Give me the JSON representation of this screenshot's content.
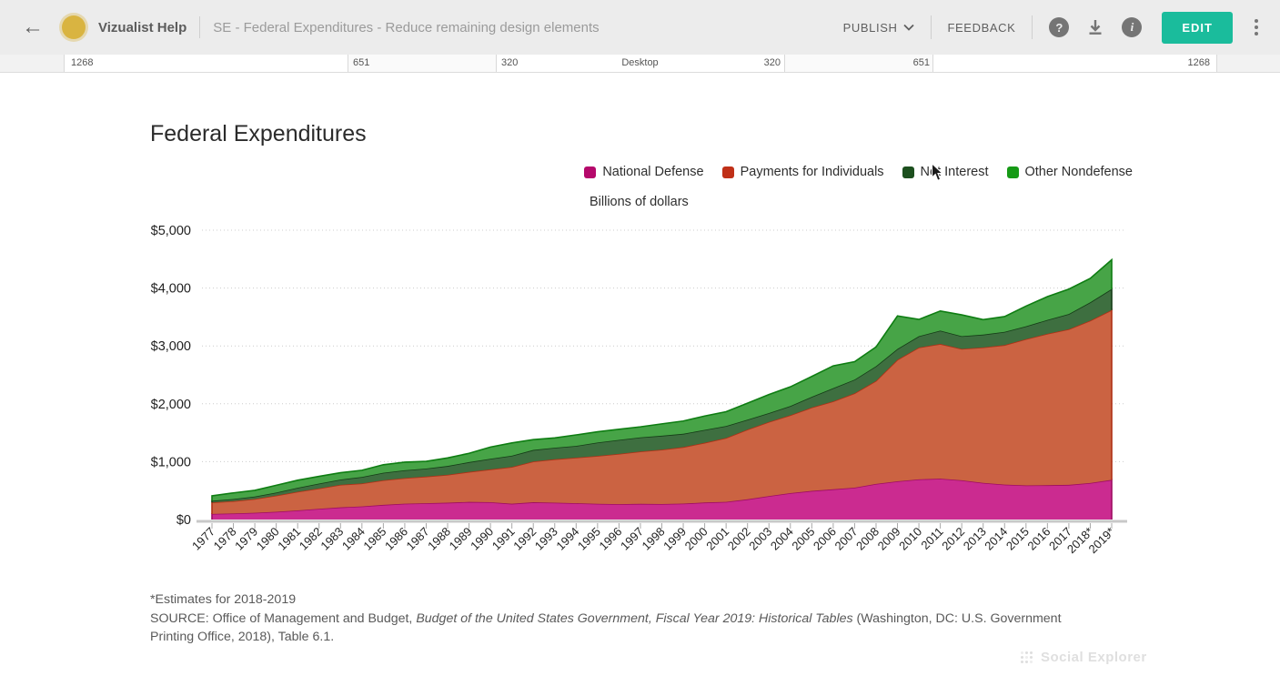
{
  "topbar": {
    "app_name": "Vizualist Help",
    "doc_title": "SE - Federal Expenditures - Reduce remaining design elements",
    "publish_label": "PUBLISH",
    "feedback_label": "FEEDBACK",
    "edit_label": "EDIT",
    "help_glyph": "?",
    "info_glyph": "i",
    "colors": {
      "bar_bg": "#ececec",
      "edit_bg": "#1abc9c",
      "icon_gray": "#757575",
      "logo_gold": "#d9b441"
    }
  },
  "ruler": {
    "labels_left": [
      "1268",
      "651",
      "320"
    ],
    "center_label": "Desktop",
    "labels_right": [
      "320",
      "651",
      "1268"
    ]
  },
  "chart_data": {
    "type": "area",
    "stacked": true,
    "title": "Federal Expenditures",
    "unit_label": "Billions of dollars",
    "xlabel": "",
    "ylabel": "",
    "ylim": [
      0,
      5000
    ],
    "ytick_step": 1000,
    "ytick_labels": [
      "$0",
      "$1,000",
      "$2,000",
      "$3,000",
      "$4,000",
      "$5,000"
    ],
    "grid": "dotted-horizontal",
    "legend_position": "top-right",
    "categories": [
      "1977",
      "1978",
      "1979",
      "1980",
      "1981",
      "1982",
      "1983",
      "1984",
      "1985",
      "1986",
      "1987",
      "1988",
      "1989",
      "1990",
      "1991",
      "1992",
      "1993",
      "1994",
      "1995",
      "1996",
      "1997",
      "1998",
      "1999",
      "2000",
      "2001",
      "2002",
      "2003",
      "2004",
      "2005",
      "2006",
      "2007",
      "2008",
      "2009",
      "2010",
      "2011",
      "2012",
      "2013",
      "2014",
      "2015",
      "2016",
      "2017",
      "2018*",
      "2019*"
    ],
    "series": [
      {
        "name": "National Defense",
        "legend_color": "#b5086b",
        "fill": "#cb2b90",
        "stroke": "#9e0c62",
        "values": [
          97,
          105,
          116,
          134,
          158,
          185,
          210,
          227,
          253,
          273,
          282,
          290,
          304,
          299,
          273,
          298,
          291,
          282,
          272,
          266,
          271,
          268,
          275,
          294,
          305,
          349,
          405,
          456,
          495,
          522,
          551,
          616,
          661,
          694,
          706,
          678,
          633,
          604,
          590,
          593,
          599,
          631,
          685
        ]
      },
      {
        "name": "Payments for Individuals",
        "legend_color": "#c03018",
        "fill": "#cb6342",
        "stroke": "#ae3015",
        "values": [
          197,
          213,
          238,
          279,
          322,
          352,
          390,
          397,
          425,
          443,
          460,
          483,
          519,
          567,
          636,
          705,
          750,
          787,
          827,
          869,
          905,
          939,
          976,
          1032,
          1105,
          1206,
          1282,
          1346,
          1441,
          1521,
          1630,
          1780,
          2100,
          2278,
          2328,
          2271,
          2341,
          2410,
          2527,
          2617,
          2690,
          2806,
          2935
        ]
      },
      {
        "name": "Net Interest",
        "legend_color": "#1c4f1e",
        "fill": "#3e6f40",
        "stroke": "#143c16",
        "values": [
          30,
          36,
          43,
          53,
          69,
          85,
          90,
          111,
          130,
          136,
          139,
          152,
          169,
          184,
          194,
          199,
          199,
          203,
          232,
          241,
          244,
          241,
          230,
          223,
          206,
          171,
          153,
          160,
          184,
          227,
          237,
          253,
          187,
          196,
          230,
          220,
          221,
          229,
          223,
          240,
          263,
          316,
          363
        ]
      },
      {
        "name": "Other Nondefense",
        "legend_color": "#169a16",
        "fill": "#47a447",
        "stroke": "#0e7d12",
        "values": [
          85,
          106,
          107,
          126,
          130,
          124,
          119,
          116,
          139,
          139,
          124,
          139,
          152,
          202,
          221,
          179,
          170,
          190,
          185,
          184,
          182,
          205,
          221,
          240,
          247,
          285,
          320,
          331,
          352,
          386,
          310,
          333,
          570,
          290,
          340,
          368,
          260,
          264,
          348,
          402,
          430,
          414,
          505
        ]
      }
    ]
  },
  "footnote": {
    "line1": "*Estimates for 2018-2019",
    "source_prefix": "SOURCE: Office of Management and Budget, ",
    "source_italic": "Budget of the United States Government, Fiscal Year 2019: Historical Tables",
    "source_suffix": " (Washington, DC: U.S. Government Printing Office, 2018), Table 6.1."
  },
  "watermark": {
    "label": "Social Explorer"
  }
}
